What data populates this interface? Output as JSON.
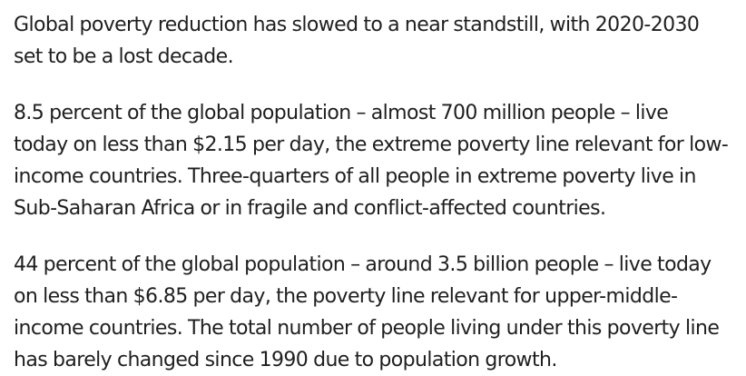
{
  "paragraphs": [
    {
      "lines": [
        "Global poverty reduction has slowed to a near standstill, with 2020-2030",
        "set to be a lost decade."
      ]
    },
    {
      "lines": [
        "8.5 percent of the global population – almost 700 million people – live",
        "today on less than $2.15 per day, the extreme poverty line relevant for low-",
        "income countries. Three-quarters of all people in extreme poverty live in",
        "Sub-Saharan Africa or in fragile and conflict-affected countries."
      ]
    },
    {
      "lines": [
        "44 percent of the global population – around 3.5 billion people – live today",
        "on less than $6.85 per day, the poverty line relevant for upper-middle-",
        "income countries. The total number of people living under this poverty line",
        "has barely changed since 1990 due to population growth."
      ]
    }
  ]
}
